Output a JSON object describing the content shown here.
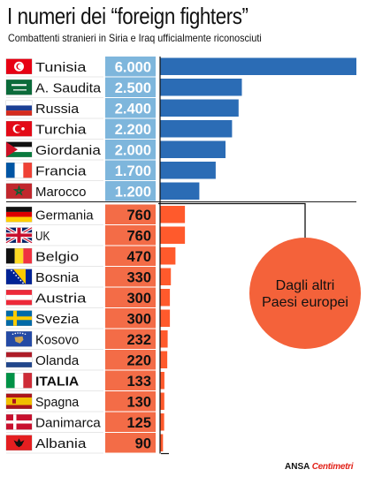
{
  "title": "I numeri dei “foreign fighters”",
  "subtitle": "Combattenti stranieri in Siria e Iraq ufficialmente riconosciuti",
  "callout": {
    "line1": "Dagli altri",
    "line2": "Paesi europei"
  },
  "credit": {
    "ansa": "ANSA",
    "brand": "Centimetri"
  },
  "colors": {
    "bar_top": "#2b6cb5",
    "box_top": "#7eb6dc",
    "bar_bottom": "#ff5a2c",
    "box_bottom": "#f36c47",
    "circle": "#f4623a"
  },
  "chart_data": {
    "type": "bar",
    "orientation": "horizontal",
    "title": "I numeri dei “foreign fighters”",
    "subtitle": "Combattenti stranieri in Siria e Iraq ufficialmente riconosciuti",
    "xlim": [
      0,
      6000
    ],
    "groups": [
      {
        "label": "",
        "style": "top",
        "rows": [
          {
            "country": "Tunisia",
            "value": 6000,
            "label": "6.000",
            "flag": "flag-tunisia"
          },
          {
            "country": "A. Saudita",
            "value": 2500,
            "label": "2.500",
            "flag": "flag-saudi-arabia"
          },
          {
            "country": "Russia",
            "value": 2400,
            "label": "2.400",
            "flag": "flag-russia"
          },
          {
            "country": "Turchia",
            "value": 2200,
            "label": "2.200",
            "flag": "flag-turkey"
          },
          {
            "country": "Giordania",
            "value": 2000,
            "label": "2.000",
            "flag": "flag-jordan"
          },
          {
            "country": "Francia",
            "value": 1700,
            "label": "1.700",
            "flag": "flag-france"
          },
          {
            "country": "Marocco",
            "value": 1200,
            "label": "1.200",
            "flag": "flag-morocco"
          }
        ]
      },
      {
        "label": "Dagli altri Paesi europei",
        "style": "bottom",
        "rows": [
          {
            "country": "Germania",
            "value": 760,
            "label": "760",
            "flag": "flag-germany"
          },
          {
            "country": "UK",
            "value": 760,
            "label": "760",
            "flag": "flag-uk"
          },
          {
            "country": "Belgio",
            "value": 470,
            "label": "470",
            "flag": "flag-belgium"
          },
          {
            "country": "Bosnia",
            "value": 330,
            "label": "330",
            "flag": "flag-bosnia"
          },
          {
            "country": "Austria",
            "value": 300,
            "label": "300",
            "flag": "flag-austria"
          },
          {
            "country": "Svezia",
            "value": 300,
            "label": "300",
            "flag": "flag-sweden"
          },
          {
            "country": "Kosovo",
            "value": 232,
            "label": "232",
            "flag": "flag-kosovo"
          },
          {
            "country": "Olanda",
            "value": 220,
            "label": "220",
            "flag": "flag-netherlands"
          },
          {
            "country": "ITALIA",
            "value": 133,
            "label": "133",
            "flag": "flag-italy",
            "bold": true
          },
          {
            "country": "Spagna",
            "value": 130,
            "label": "130",
            "flag": "flag-spain"
          },
          {
            "country": "Danimarca",
            "value": 125,
            "label": "125",
            "flag": "flag-denmark"
          },
          {
            "country": "Albania",
            "value": 90,
            "label": "90",
            "flag": "flag-albania"
          }
        ]
      }
    ]
  }
}
